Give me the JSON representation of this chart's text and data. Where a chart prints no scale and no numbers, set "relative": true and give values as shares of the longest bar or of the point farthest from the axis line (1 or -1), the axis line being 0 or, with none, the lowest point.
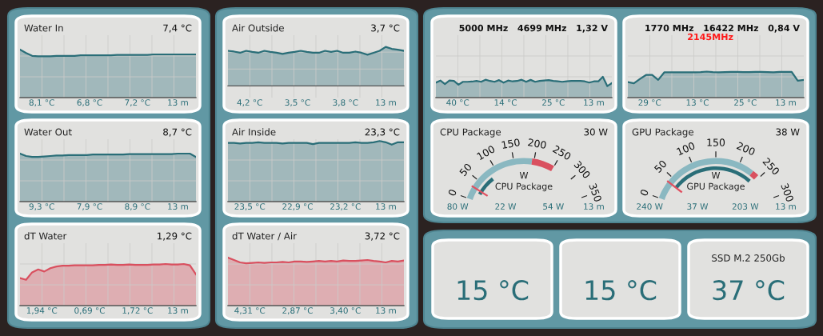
{
  "chart_data": [
    {
      "type": "area",
      "title": "Water In",
      "subtitle": "7,4 °C",
      "relative": true,
      "grid": true,
      "color": "#2a6e78",
      "categories": [
        null,
        null,
        null,
        null,
        null,
        null,
        null,
        null,
        null,
        null,
        null,
        null,
        null,
        null,
        null,
        null,
        null,
        null,
        null,
        null,
        null,
        null,
        null,
        null,
        null,
        null,
        null,
        null,
        null,
        null
      ],
      "values": [
        1,
        0.93,
        0.87,
        0.86,
        0.86,
        0.86,
        0.87,
        0.87,
        0.87,
        0.87,
        0.88,
        0.88,
        0.88,
        0.88,
        0.88,
        0.88,
        0.89,
        0.89,
        0.89,
        0.89,
        0.89,
        0.89,
        0.9,
        0.9,
        0.9,
        0.9,
        0.9,
        0.9,
        0.9,
        0.9
      ],
      "annotations": [
        "8,1 °C",
        "6,8 °C",
        "7,2 °C",
        "13 m"
      ]
    },
    {
      "type": "area",
      "title": "Water Out",
      "subtitle": "8,7 °C",
      "relative": true,
      "grid": true,
      "color": "#2a6e78",
      "categories": [
        null,
        null,
        null,
        null,
        null,
        null,
        null,
        null,
        null,
        null,
        null,
        null,
        null,
        null,
        null,
        null,
        null,
        null,
        null,
        null,
        null,
        null,
        null,
        null,
        null,
        null,
        null,
        null,
        null,
        null
      ],
      "values": [
        1,
        0.95,
        0.93,
        0.93,
        0.94,
        0.95,
        0.96,
        0.96,
        0.97,
        0.97,
        0.97,
        0.97,
        0.98,
        0.98,
        0.98,
        0.98,
        0.98,
        0.98,
        0.99,
        0.99,
        0.99,
        0.99,
        0.99,
        0.99,
        0.99,
        0.99,
        1,
        1,
        1,
        0.93
      ],
      "annotations": [
        "9,3 °C",
        "7,9 °C",
        "8,9 °C",
        "13 m"
      ]
    },
    {
      "type": "area",
      "title": "dT Water",
      "subtitle": "1,29 °C",
      "relative": true,
      "grid": true,
      "color": "#d9505f",
      "categories": [
        null,
        null,
        null,
        null,
        null,
        null,
        null,
        null,
        null,
        null,
        null,
        null,
        null,
        null,
        null,
        null,
        null,
        null,
        null,
        null,
        null,
        null,
        null,
        null,
        null,
        null,
        null,
        null,
        null,
        null
      ],
      "values": [
        0.66,
        0.62,
        0.8,
        0.87,
        0.82,
        0.9,
        0.94,
        0.96,
        0.96,
        0.97,
        0.97,
        0.97,
        0.97,
        0.98,
        0.98,
        0.99,
        0.98,
        0.98,
        0.99,
        0.98,
        0.98,
        0.98,
        0.99,
        0.99,
        1,
        0.99,
        0.99,
        1,
        0.97,
        0.75
      ],
      "annotations": [
        "1,94 °C",
        "0,69 °C",
        "1,72 °C",
        "13 m"
      ]
    },
    {
      "type": "area",
      "title": "Air Outside",
      "subtitle": "3,7 °C",
      "relative": true,
      "grid": true,
      "color": "#2a6e78",
      "categories": [
        null,
        null,
        null,
        null,
        null,
        null,
        null,
        null,
        null,
        null,
        null,
        null,
        null,
        null,
        null,
        null,
        null,
        null,
        null,
        null,
        null,
        null,
        null,
        null,
        null,
        null,
        null,
        null,
        null,
        null
      ],
      "values": [
        0.9,
        0.88,
        0.85,
        0.9,
        0.87,
        0.85,
        0.9,
        0.87,
        0.85,
        0.82,
        0.85,
        0.87,
        0.9,
        0.87,
        0.85,
        0.85,
        0.9,
        0.87,
        0.9,
        0.85,
        0.85,
        0.88,
        0.85,
        0.8,
        0.85,
        0.9,
        1,
        0.95,
        0.93,
        0.9
      ],
      "annotations": [
        "4,2 °C",
        "3,5 °C",
        "3,8 °C",
        "13 m"
      ]
    },
    {
      "type": "area",
      "title": "Air Inside",
      "subtitle": "23,3 °C",
      "relative": true,
      "grid": true,
      "color": "#2a6e78",
      "categories": [
        null,
        null,
        null,
        null,
        null,
        null,
        null,
        null,
        null,
        null,
        null,
        null,
        null,
        null,
        null,
        null,
        null,
        null,
        null,
        null,
        null,
        null,
        null,
        null,
        null,
        null,
        null,
        null,
        null,
        null
      ],
      "values": [
        0.97,
        0.97,
        0.96,
        0.97,
        0.97,
        0.98,
        0.97,
        0.97,
        0.97,
        0.96,
        0.97,
        0.97,
        0.97,
        0.97,
        0.95,
        0.97,
        0.97,
        0.97,
        0.97,
        0.97,
        0.97,
        0.98,
        0.97,
        0.97,
        0.98,
        1,
        0.98,
        0.94,
        0.98,
        0.98
      ],
      "annotations": [
        "23,5 °C",
        "22,9 °C",
        "23,2 °C",
        "13 m"
      ]
    },
    {
      "type": "area",
      "title": "dT Water / Air",
      "subtitle": "3,72 °C",
      "relative": true,
      "grid": true,
      "color": "#d9505f",
      "categories": [
        null,
        null,
        null,
        null,
        null,
        null,
        null,
        null,
        null,
        null,
        null,
        null,
        null,
        null,
        null,
        null,
        null,
        null,
        null,
        null,
        null,
        null,
        null,
        null,
        null,
        null,
        null,
        null,
        null,
        null
      ],
      "values": [
        1,
        0.95,
        0.9,
        0.88,
        0.89,
        0.9,
        0.89,
        0.9,
        0.9,
        0.91,
        0.9,
        0.92,
        0.92,
        0.91,
        0.92,
        0.93,
        0.92,
        0.93,
        0.92,
        0.94,
        0.93,
        0.93,
        0.94,
        0.95,
        0.93,
        0.92,
        0.9,
        0.93,
        0.92,
        0.94
      ],
      "annotations": [
        "4,31 °C",
        "2,87 °C",
        "3,40 °C",
        "13 m"
      ]
    },
    {
      "type": "area",
      "subtitle": "5000 MHz   4699 MHz   1,32 V",
      "relative": true,
      "grid": true,
      "color": "#2a6e78",
      "categories": [
        null,
        null,
        null,
        null,
        null,
        null,
        null,
        null,
        null,
        null,
        null,
        null,
        null,
        null,
        null,
        null,
        null,
        null,
        null,
        null,
        null,
        null,
        null,
        null,
        null,
        null,
        null,
        null,
        null,
        null,
        null,
        null,
        null,
        null,
        null,
        null,
        null,
        null,
        null,
        null
      ],
      "values": [
        0.72,
        0.82,
        0.65,
        0.82,
        0.8,
        0.62,
        0.76,
        0.76,
        0.77,
        0.8,
        0.76,
        0.86,
        0.8,
        0.76,
        0.84,
        0.72,
        0.82,
        0.78,
        0.8,
        0.86,
        0.76,
        0.85,
        0.76,
        0.8,
        0.82,
        0.84,
        0.8,
        0.78,
        0.76,
        0.78,
        0.8,
        0.8,
        0.8,
        0.78,
        0.72,
        0.78,
        0.78,
        1,
        0.55,
        0.7
      ],
      "annotations": [
        "40 °C",
        "14 °C",
        "25 °C",
        "13 m"
      ]
    },
    {
      "type": "area",
      "subtitle": "1770 MHz   16422 MHz   0,84 V",
      "relative": true,
      "grid": true,
      "color": "#2a6e78",
      "categories": [
        null,
        null,
        null,
        null,
        null,
        null,
        null,
        null,
        null,
        null,
        null,
        null,
        null,
        null,
        null,
        null,
        null,
        null,
        null,
        null,
        null,
        null,
        null,
        null,
        null,
        null,
        null,
        null,
        null,
        null
      ],
      "values": [
        0.6,
        0.55,
        0.72,
        0.87,
        0.87,
        0.68,
        0.97,
        0.97,
        0.97,
        0.97,
        0.97,
        0.97,
        0.98,
        1,
        0.98,
        0.97,
        0.98,
        0.99,
        0.99,
        0.98,
        0.98,
        0.99,
        0.99,
        0.98,
        0.97,
        0.99,
        0.99,
        0.99,
        0.65,
        0.68
      ],
      "annotations": [
        "29 °C",
        "13 °C",
        "25 °C",
        "13 m",
        "2145MHz"
      ]
    },
    {
      "type": "other",
      "title": "CPU Package",
      "subtitle": "30 W",
      "xlabel": "W",
      "annotations": [
        "80 W",
        "22 W",
        "54 W",
        "13 m",
        "CPU Package",
        "0",
        "50",
        "100",
        "150",
        "200",
        "250",
        "300",
        "350"
      ]
    },
    {
      "type": "other",
      "title": "GPU Package",
      "subtitle": "38 W",
      "xlabel": "W",
      "annotations": [
        "240 W",
        "37 W",
        "203 W",
        "13 m",
        "GPU Package",
        "0",
        "50",
        "100",
        "150",
        "200",
        "250",
        "300"
      ]
    },
    {
      "type": "other",
      "annotations": [
        "15 °C"
      ]
    },
    {
      "type": "other",
      "annotations": [
        "15 °C"
      ]
    },
    {
      "type": "other",
      "title": "SSD M.2 250Gb",
      "annotations": [
        "37 °C"
      ]
    }
  ]
}
